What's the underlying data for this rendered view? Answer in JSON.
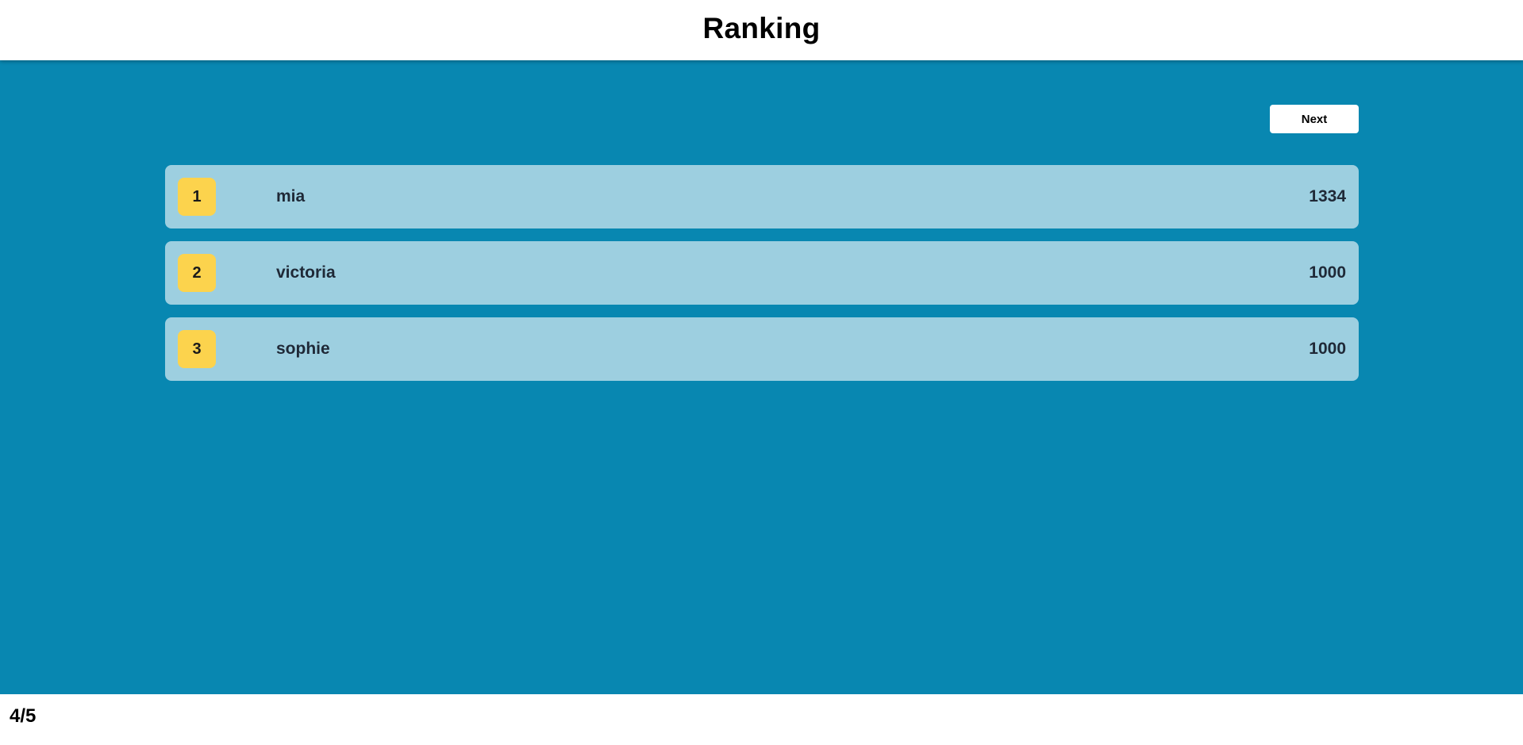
{
  "header": {
    "title": "Ranking"
  },
  "controls": {
    "next_label": "Next"
  },
  "ranking": [
    {
      "rank": "1",
      "name": "mia",
      "score": "1334"
    },
    {
      "rank": "2",
      "name": "victoria",
      "score": "1000"
    },
    {
      "rank": "3",
      "name": "sophie",
      "score": "1000"
    }
  ],
  "footer": {
    "progress": "4/5"
  },
  "colors": {
    "background": "#0887b1",
    "row": "#9dcfe0",
    "badge": "#fcd34d"
  }
}
